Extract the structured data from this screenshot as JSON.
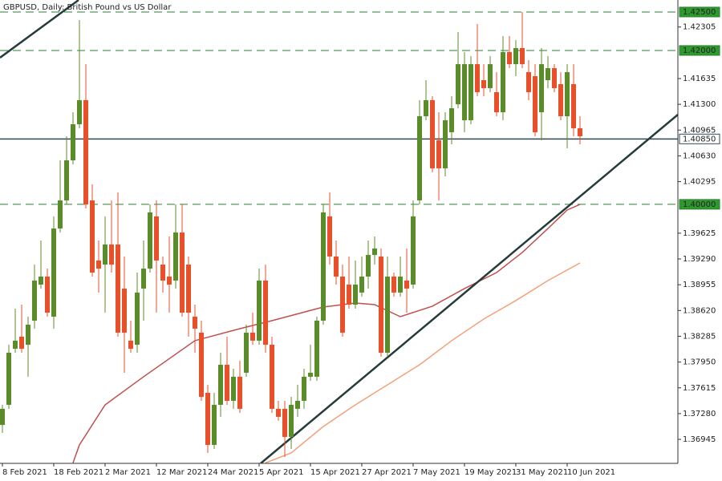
{
  "chart_data": {
    "type": "candlestick",
    "title": "GBPUSD, Daily:  British Pound vs US Dollar",
    "up_color": "#5b8c2a",
    "down_color": "#e8502a",
    "categories": [
      "8 Feb 2021",
      null,
      null,
      null,
      null,
      null,
      null,
      null,
      "18 Feb 2021",
      null,
      null,
      null,
      null,
      null,
      null,
      null,
      "2 Mar 2021",
      null,
      null,
      null,
      null,
      null,
      null,
      null,
      "12 Mar 2021",
      null,
      null,
      null,
      null,
      null,
      null,
      null,
      "24 Mar 2021",
      null,
      null,
      null,
      null,
      null,
      null,
      null,
      "5 Apr 2021",
      null,
      null,
      null,
      null,
      null,
      null,
      null,
      "15 Apr 2021",
      null,
      null,
      null,
      null,
      null,
      null,
      null,
      "27 Apr 2021",
      null,
      null,
      null,
      null,
      null,
      null,
      null,
      "7 May 2021",
      null,
      null,
      null,
      null,
      null,
      null,
      null,
      "19 May 2021",
      null,
      null,
      null,
      null,
      null,
      null,
      null,
      "31 May 2021",
      null,
      null,
      null,
      null,
      null,
      null,
      null,
      "10 Jun 2021",
      null,
      null
    ],
    "open": [
      1.37133,
      1.37394,
      1.38123,
      1.3828,
      1.38175,
      1.38488,
      1.38957,
      1.39061,
      1.3854,
      1.39686,
      1.40051,
      1.40572,
      1.41041,
      1.41354,
      1.40051,
      1.3927,
      1.39217,
      1.39478,
      1.39478,
      1.38905,
      1.38228,
      1.38175,
      1.38905,
      1.39165,
      1.39843,
      1.39217,
      1.39061,
      1.39009,
      1.39634,
      1.39217,
      1.3854,
      1.38332,
      1.3755,
      1.36873,
      1.37394,
      1.37915,
      1.37446,
      1.37759,
      1.37811,
      1.38332,
      1.38228,
      1.39009,
      1.38175,
      1.37342,
      1.37342,
      1.36977,
      1.37342,
      1.37446,
      1.37759,
      1.37759,
      1.38488,
      1.39843,
      1.39322,
      1.39061,
      1.38957,
      1.38696,
      1.38853,
      1.39061,
      1.39342,
      1.39322,
      1.38071,
      1.39061,
      1.38853,
      1.39009,
      1.38957,
      1.40051,
      1.41145,
      1.41354,
      1.40833,
      1.40468,
      1.40937,
      1.41301,
      1.41093,
      1.41093,
      1.41822,
      1.41614,
      1.4151,
      1.41458,
      1.41197,
      1.41979,
      1.41822,
      1.42031,
      1.41718,
      1.41666,
      1.41197,
      1.41614,
      1.4177,
      1.41562,
      1.41145,
      1.41562,
      1.40989
    ],
    "high": [
      1.37394,
      1.38175,
      1.38644,
      1.38696,
      1.3854,
      1.39217,
      1.3953,
      1.39165,
      1.39843,
      1.40572,
      1.40885,
      1.41197,
      1.42396,
      1.41822,
      1.40259,
      1.3953,
      1.39843,
      1.40051,
      1.40155,
      1.39322,
      1.38488,
      1.39113,
      1.3953,
      1.39999,
      1.40051,
      1.39322,
      1.39582,
      1.39999,
      1.39999,
      1.39322,
      1.38696,
      1.38488,
      1.37654,
      1.3755,
      1.38071,
      1.3828,
      1.37863,
      1.37967,
      1.38436,
      1.38592,
      1.39165,
      1.39217,
      1.3828,
      1.37446,
      1.37446,
      1.37498,
      1.37654,
      1.37863,
      1.38175,
      1.3854,
      1.39999,
      1.40155,
      1.3953,
      1.39217,
      1.39322,
      1.3927,
      1.39322,
      1.3953,
      1.39582,
      1.39426,
      1.39322,
      1.39113,
      1.39322,
      1.39426,
      1.40051,
      1.41354,
      1.41614,
      1.41406,
      1.41197,
      1.41197,
      1.41406,
      1.42239,
      1.41979,
      1.41927,
      1.42343,
      1.41822,
      1.41927,
      1.41718,
      1.42187,
      1.42187,
      1.42135,
      1.425,
      1.41874,
      1.41822,
      1.42031,
      1.41927,
      1.41822,
      1.41718,
      1.41822,
      1.41822,
      1.41145
    ],
    "low": [
      1.37029,
      1.37342,
      1.38071,
      1.38071,
      1.37759,
      1.38384,
      1.38905,
      1.3854,
      1.38384,
      1.39634,
      1.39999,
      1.4052,
      1.40989,
      1.39947,
      1.39061,
      1.38853,
      1.38592,
      1.39113,
      1.3828,
      1.37811,
      1.38071,
      1.38071,
      1.38488,
      1.39113,
      1.38592,
      1.38853,
      1.38592,
      1.38905,
      1.3854,
      1.3828,
      1.38071,
      1.37446,
      1.36769,
      1.36821,
      1.37238,
      1.37394,
      1.37342,
      1.3729,
      1.37759,
      1.38175,
      1.38175,
      1.38071,
      1.3729,
      1.37186,
      1.36717,
      1.36821,
      1.37238,
      1.37342,
      1.37706,
      1.37706,
      1.38436,
      1.39217,
      1.38957,
      1.3828,
      1.38644,
      1.38644,
      1.38801,
      1.38905,
      1.39217,
      1.38019,
      1.38019,
      1.38801,
      1.38801,
      1.38592,
      1.38905,
      1.39999,
      1.41093,
      1.40416,
      1.40051,
      1.40364,
      1.4078,
      1.41249,
      1.40937,
      1.41041,
      1.41406,
      1.41406,
      1.41458,
      1.41145,
      1.41093,
      1.4177,
      1.41666,
      1.4177,
      1.41354,
      1.40885,
      1.40833,
      1.4151,
      1.41458,
      1.41093,
      1.40728,
      1.40885,
      1.4078
    ],
    "close": [
      1.37342,
      1.38071,
      1.38228,
      1.38123,
      1.38436,
      1.39009,
      1.39061,
      1.38592,
      1.39686,
      1.40051,
      1.40572,
      1.41041,
      1.41354,
      1.39999,
      1.39113,
      1.39165,
      1.39478,
      1.39217,
      1.38332,
      1.38332,
      1.38123,
      1.38853,
      1.39165,
      1.39895,
      1.3927,
      1.39009,
      1.38957,
      1.39634,
      1.38592,
      1.38592,
      1.38384,
      1.37498,
      1.36873,
      1.37394,
      1.37915,
      1.37446,
      1.37759,
      1.37342,
      1.38332,
      1.38228,
      1.39009,
      1.38175,
      1.37342,
      1.37238,
      1.36977,
      1.37394,
      1.37446,
      1.37759,
      1.37811,
      1.38488,
      1.39895,
      1.39322,
      1.39061,
      1.38332,
      1.38696,
      1.38957,
      1.39061,
      1.39342,
      1.39426,
      1.38071,
      1.39061,
      1.38853,
      1.39061,
      1.38905,
      1.39843,
      1.41145,
      1.41354,
      1.40468,
      1.40468,
      1.41093,
      1.41249,
      1.41822,
      1.41822,
      1.41822,
      1.41458,
      1.4151,
      1.41822,
      1.41197,
      1.41979,
      1.41822,
      1.42031,
      1.41822,
      1.41458,
      1.40937,
      1.41822,
      1.4177,
      1.4151,
      1.41145,
      1.41718,
      1.40989,
      1.40885
    ],
    "moving_averages": [
      {
        "color": "#c0504d",
        "x": [
          11,
          12,
          16,
          22,
          30,
          37,
          42,
          50,
          55,
          58,
          62,
          67,
          72,
          77,
          81,
          85,
          88,
          90
        ],
        "values": [
          1.3664,
          1.36873,
          1.37394,
          1.37759,
          1.38228,
          1.38384,
          1.38488,
          1.38665,
          1.38717,
          1.38696,
          1.3854,
          1.38676,
          1.38905,
          1.39113,
          1.39374,
          1.39686,
          1.39926,
          1.39999
        ]
      },
      {
        "color": "#f4a07a",
        "x": [
          41,
          45,
          50,
          55,
          60,
          65,
          70,
          75,
          80,
          85,
          90
        ],
        "values": [
          1.3664,
          1.36769,
          1.37112,
          1.37394,
          1.37654,
          1.37915,
          1.38228,
          1.38509,
          1.38749,
          1.39009,
          1.39238
        ]
      }
    ],
    "trendlines": [
      {
        "color": "#263b3b",
        "x": [
          -0.375,
          11.875
        ],
        "values": [
          1.41906,
          1.42656
        ]
      },
      {
        "color": "#263b3b",
        "x": [
          40.25,
          105.25
        ],
        "values": [
          1.36633,
          1.41166
        ]
      }
    ],
    "levels": [
      {
        "value": 1.425,
        "label": "1.42500",
        "style": "dashed",
        "color": "#2e7d32",
        "label_bg": "#2e9a2e"
      },
      {
        "value": 1.42,
        "label": "1.42000",
        "style": "dashed",
        "color": "#2e7d32",
        "label_bg": "#2e9a2e"
      },
      {
        "value": 1.4085,
        "label": "1.40850",
        "style": "solid",
        "color": "#2f4858",
        "label_bg": "#ffffff"
      },
      {
        "value": 1.4,
        "label": "1.40000",
        "style": "dashed",
        "color": "#2e7d32",
        "label_bg": "#2e9a2e"
      }
    ],
    "ylim": [
      1.36633,
      1.42656
    ],
    "yticks": [
      {
        "value": 1.42305,
        "label": "1.42305"
      },
      {
        "value": 1.41635,
        "label": "1.41635"
      },
      {
        "value": 1.413,
        "label": "1.41300"
      },
      {
        "value": 1.40965,
        "label": "1.40965"
      },
      {
        "value": 1.4063,
        "label": "1.40630"
      },
      {
        "value": 1.40295,
        "label": "1.40295"
      },
      {
        "value": 1.39625,
        "label": "1.39625"
      },
      {
        "value": 1.3929,
        "label": "1.39290"
      },
      {
        "value": 1.38955,
        "label": "1.38955"
      },
      {
        "value": 1.3862,
        "label": "1.38620"
      },
      {
        "value": 1.38285,
        "label": "1.38285"
      },
      {
        "value": 1.3795,
        "label": "1.37950"
      },
      {
        "value": 1.37615,
        "label": "1.37615"
      },
      {
        "value": 1.3728,
        "label": "1.37280"
      },
      {
        "value": 1.36945,
        "label": "1.36945"
      }
    ]
  }
}
